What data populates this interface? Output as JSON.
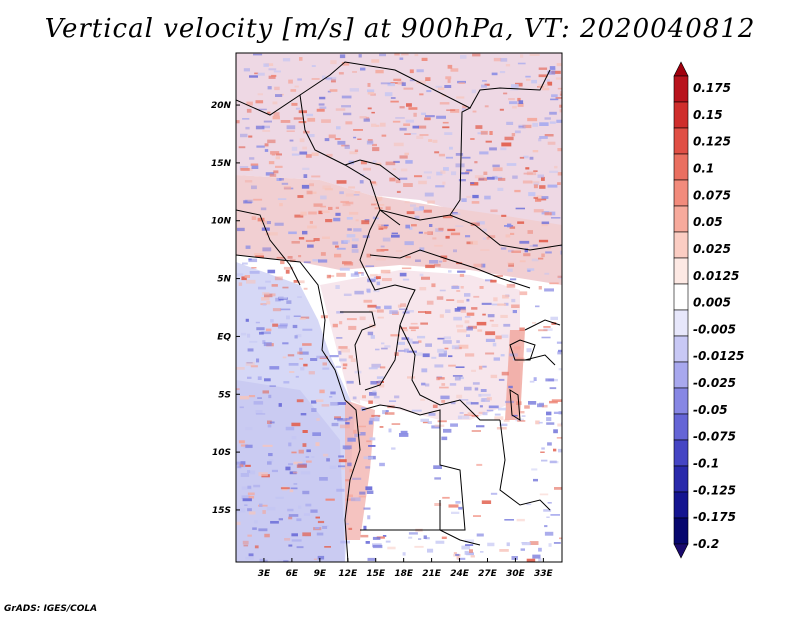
{
  "title": "Vertical velocity [m/s] at 900hPa, VT: 2020040812",
  "credit": "GrADS: IGES/COLA",
  "map": {
    "lat_labels": [
      "20N",
      "15N",
      "10N",
      "5N",
      "EQ",
      "5S",
      "10S",
      "15S"
    ],
    "lat_values": [
      20,
      15,
      10,
      5,
      0,
      -5,
      -10,
      -15
    ],
    "lon_labels": [
      "3E",
      "6E",
      "9E",
      "12E",
      "15E",
      "18E",
      "21E",
      "24E",
      "27E",
      "30E",
      "33E"
    ],
    "lon_values": [
      3,
      6,
      9,
      12,
      15,
      18,
      21,
      24,
      27,
      30,
      33
    ],
    "lon_range": [
      0,
      35
    ],
    "lat_range": [
      -19.5,
      24.5
    ]
  },
  "colorbar": {
    "labels": [
      "0.175",
      "0.15",
      "0.125",
      "0.1",
      "0.075",
      "0.05",
      "0.025",
      "0.0125",
      "0.005",
      "-0.005",
      "-0.0125",
      "-0.025",
      "-0.05",
      "-0.075",
      "-0.1",
      "-0.125",
      "-0.175",
      "-0.2"
    ],
    "colors": [
      "#a0000d",
      "#b8131d",
      "#cf2e2c",
      "#e04f45",
      "#ea6f60",
      "#f28b7c",
      "#f7aa9c",
      "#fbcdc3",
      "#fde9e4",
      "#ffffff",
      "#e7e7fb",
      "#c8c8f5",
      "#a8a8ee",
      "#8787e4",
      "#6565d6",
      "#4545c4",
      "#2a2aab",
      "#151590",
      "#07076e",
      "#1a0a6e"
    ]
  }
}
